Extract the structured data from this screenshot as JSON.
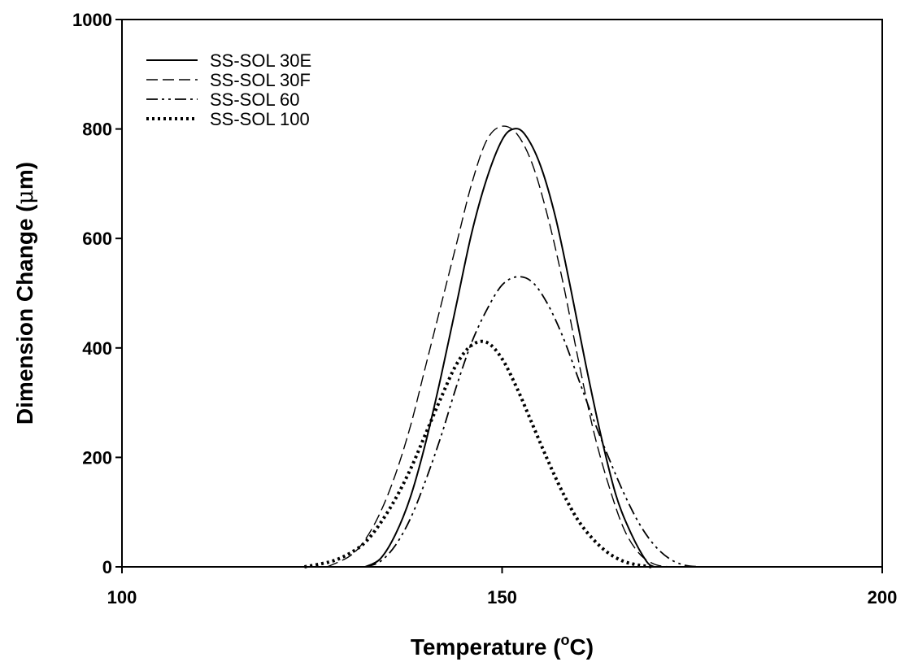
{
  "chart_data": {
    "type": "line",
    "xlabel_main": "Temperature (",
    "xlabel_sup": "o",
    "xlabel_unit": "C)",
    "ylabel_main": "Dimension Change (",
    "ylabel_greek": "μ",
    "ylabel_unit": "m)",
    "xlim": [
      100,
      200
    ],
    "ylim": [
      0,
      1000
    ],
    "x_ticks": [
      100,
      150,
      200
    ],
    "x_tick_labels": [
      "100",
      "150",
      "200"
    ],
    "y_ticks": [
      0,
      200,
      400,
      600,
      800,
      1000
    ],
    "y_tick_labels": [
      "0",
      "200",
      "400",
      "600",
      "800",
      "1000"
    ],
    "grid": false,
    "legend_position": "top-left",
    "series": [
      {
        "name": "SS-SOL 30E",
        "style": "solid",
        "x": [
          132,
          134,
          136,
          138,
          140,
          142,
          144,
          146,
          148,
          150,
          151.5,
          153,
          155,
          157,
          159,
          161,
          163,
          165,
          167,
          169,
          170
        ],
        "y": [
          0,
          15,
          60,
          130,
          230,
          350,
          480,
          610,
          710,
          780,
          800,
          790,
          735,
          640,
          510,
          370,
          240,
          130,
          60,
          10,
          0
        ]
      },
      {
        "name": "SS-SOL 30F",
        "style": "dashed",
        "x": [
          127,
          130,
          132,
          134,
          136,
          138,
          140,
          142,
          144,
          146,
          148,
          150,
          152,
          154,
          156,
          158,
          160,
          162,
          164,
          166,
          168,
          170,
          172
        ],
        "y": [
          0,
          20,
          50,
          100,
          170,
          260,
          370,
          480,
          590,
          700,
          780,
          805,
          790,
          735,
          640,
          520,
          380,
          250,
          150,
          70,
          25,
          5,
          0
        ]
      },
      {
        "name": "SS-SOL 60",
        "style": "dashdotdot",
        "x": [
          132,
          134,
          136,
          138,
          140,
          142,
          144,
          146,
          148,
          150,
          152,
          154,
          156,
          158,
          160,
          162,
          164,
          166,
          168,
          170,
          172,
          174,
          176
        ],
        "y": [
          0,
          10,
          40,
          90,
          160,
          240,
          330,
          410,
          470,
          515,
          530,
          520,
          480,
          420,
          345,
          270,
          200,
          135,
          80,
          40,
          15,
          3,
          0
        ]
      },
      {
        "name": "SS-SOL 100",
        "style": "dotted",
        "x": [
          124,
          126,
          128,
          130,
          132,
          134,
          136,
          138,
          140,
          142,
          144,
          146,
          148,
          150,
          152,
          154,
          156,
          158,
          160,
          162,
          164,
          166,
          168,
          170
        ],
        "y": [
          0,
          5,
          12,
          25,
          45,
          80,
          125,
          180,
          245,
          310,
          370,
          405,
          410,
          380,
          325,
          260,
          195,
          135,
          85,
          50,
          25,
          10,
          3,
          0
        ]
      }
    ]
  },
  "line_styles": {
    "solid": "",
    "dashed": "14 6",
    "dashdotdot": "14 5 3 5 3 5",
    "dotted": "3 4"
  },
  "stroke_widths": {
    "solid": 2,
    "dashed": 1.4,
    "dashdotdot": 1.8,
    "dotted": 4
  }
}
